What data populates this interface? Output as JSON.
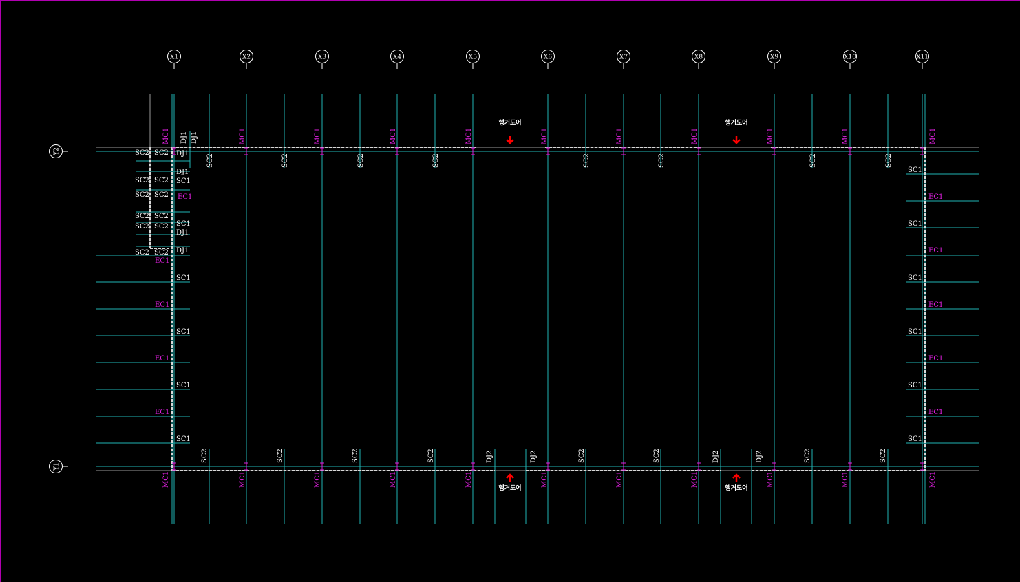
{
  "colors": {
    "grid": "#1fb5b5",
    "gray": "#9a9a9a",
    "dashed": "#d8d8d8",
    "magenta": "#e020e0",
    "label": "#ffffff",
    "arrow": "#ff0000",
    "frame": "#b000b0"
  },
  "grid_x": [
    "X1",
    "X2",
    "X3",
    "X4",
    "X5",
    "X6",
    "X7",
    "X8",
    "X9",
    "X10",
    "X11"
  ],
  "grid_y": [
    "Y2",
    "Y1"
  ],
  "hangar_door": "행거도어",
  "top_columns": [
    "MC1",
    "MC1",
    "MC1",
    "MC1",
    "MC1",
    "MC1",
    "MC1",
    "MC1",
    "MC1",
    "MC1",
    "MC1"
  ],
  "top_beams": [
    "SC2",
    "SC2",
    "SC2",
    "SC2",
    "SC2",
    "SC2",
    "SC2",
    "SC2"
  ],
  "top_left_joists": [
    "DJ1",
    "DJ1"
  ],
  "bottom_columns": [
    "MC1",
    "MC1",
    "MC1",
    "MC1",
    "MC1",
    "MC1",
    "MC1",
    "MC1",
    "MC1",
    "MC1",
    "MC1"
  ],
  "bottom_beams": [
    "SC2",
    "SC2",
    "SC2",
    "SC2",
    "DJ2",
    "DJ2",
    "SC2",
    "SC2",
    "DJ2",
    "DJ2",
    "SC2",
    "SC2"
  ],
  "left_labels": [
    "DJ1",
    "DJ1",
    "SC1",
    "EC1",
    "SC1",
    "DJ1",
    "DJ1",
    "EC1",
    "SC1",
    "EC1",
    "SC1",
    "EC1",
    "SC1",
    "EC1",
    "SC1"
  ],
  "left_sc2": [
    "SC2",
    "SC2",
    "SC2",
    "SC2",
    "SC2",
    "SC2",
    "SC2",
    "SC2",
    "SC2",
    "SC2",
    "SC2",
    "SC2"
  ],
  "right_labels": [
    "SC1",
    "EC1",
    "SC1",
    "EC1",
    "SC1",
    "EC1",
    "SC1",
    "EC1",
    "SC1",
    "EC1",
    "SC1"
  ]
}
